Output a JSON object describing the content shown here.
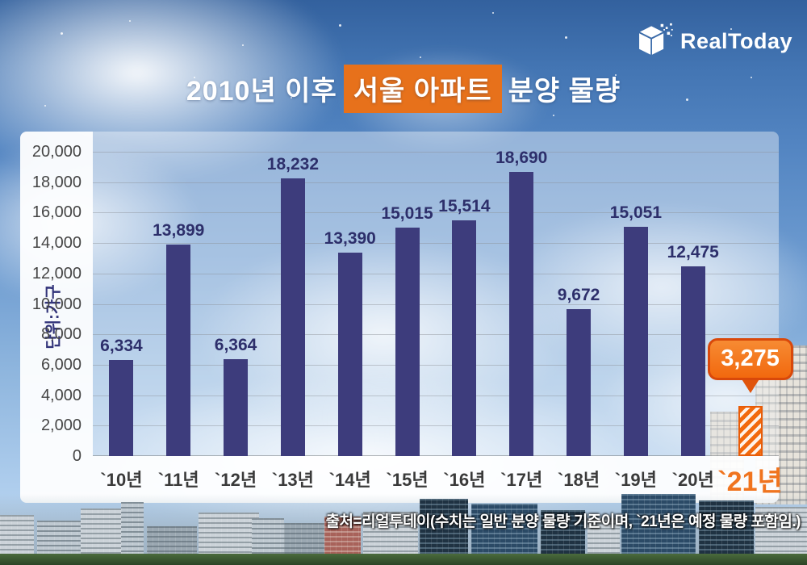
{
  "logo": {
    "text": "RealToday"
  },
  "title": {
    "prefix": "2010년 이후",
    "highlight": "서울 아파트",
    "suffix": "분양 물량"
  },
  "footer": {
    "source": "출처=리얼투데이(수치는 일반 분양 물량 기준이며, `21년은 예정 물량 포함임.)"
  },
  "chart_data": {
    "type": "bar",
    "title": "2010년 이후 서울 아파트 분양 물량",
    "unit_label": "단위:가구",
    "categories": [
      "`10년",
      "`11년",
      "`12년",
      "`13년",
      "`14년",
      "`15년",
      "`16년",
      "`17년",
      "`18년",
      "`19년",
      "`20년",
      "`21년"
    ],
    "values": [
      6334,
      13899,
      6364,
      18232,
      13390,
      15015,
      15514,
      18690,
      9672,
      15051,
      12475,
      3275
    ],
    "value_labels": [
      "6,334",
      "13,899",
      "6,364",
      "18,232",
      "13,390",
      "15,015",
      "15,514",
      "18,690",
      "9,672",
      "15,051",
      "12,475",
      "3,275"
    ],
    "ylim": [
      0,
      20000
    ],
    "ytick_step": 2000,
    "ytick_labels": [
      "0",
      "2,000",
      "4,000",
      "6,000",
      "8,000",
      "10,000",
      "12,000",
      "14,000",
      "16,000",
      "18,000",
      "20,000"
    ],
    "grid": true,
    "legend": "none",
    "highlight_index": 11,
    "highlight_callout": "3,275",
    "bar_color": "#3D3C7C",
    "highlight_color": "#F2690D",
    "label_color": "#2D2F6B"
  }
}
